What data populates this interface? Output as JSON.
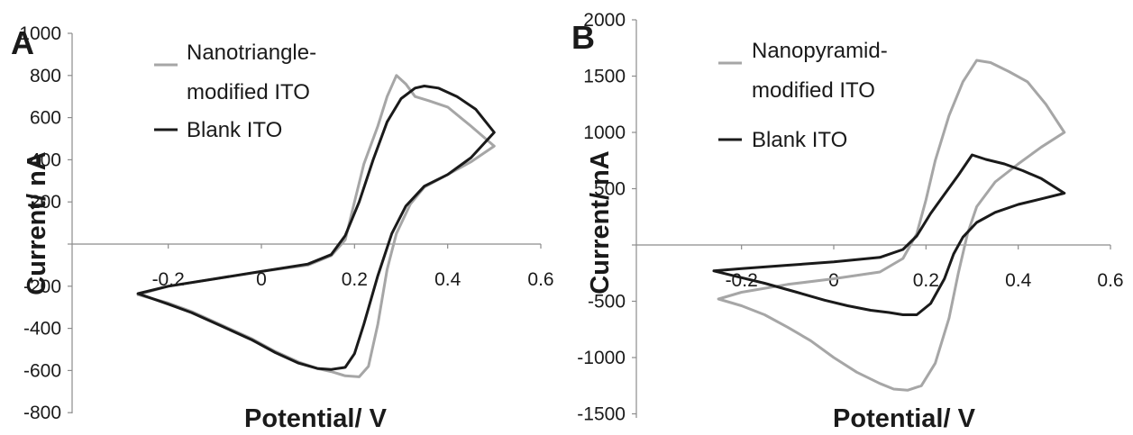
{
  "chart_data": [
    {
      "panel": "A",
      "type": "line",
      "xlabel": "Potential/ V",
      "ylabel": "Current/ nA",
      "xlim": [
        -0.3,
        0.6
      ],
      "ylim": [
        -800,
        1000
      ],
      "x_ticks": [
        -0.2,
        0,
        0.2,
        0.4,
        0.6
      ],
      "x_tick_labels": [
        "-0.2",
        "0",
        "0.2",
        "0.4",
        "0.6"
      ],
      "y_ticks": [
        -800,
        -600,
        -400,
        -200,
        0,
        200,
        400,
        600,
        800,
        1000
      ],
      "y_tick_labels": [
        "-800",
        "-600",
        "-400",
        "-200",
        "",
        "200",
        "400",
        "600",
        "800",
        "1000"
      ],
      "grid": false,
      "legend_position": "top-left",
      "series": [
        {
          "name": "Nanotriangle-\nmodified ITO",
          "color": "#a6a6a6",
          "points": [
            [
              -0.265,
              -240
            ],
            [
              -0.2,
              -200
            ],
            [
              -0.1,
              -165
            ],
            [
              0,
              -130
            ],
            [
              0.1,
              -100
            ],
            [
              0.15,
              -55
            ],
            [
              0.18,
              20
            ],
            [
              0.2,
              200
            ],
            [
              0.22,
              380
            ],
            [
              0.25,
              560
            ],
            [
              0.27,
              700
            ],
            [
              0.29,
              800
            ],
            [
              0.31,
              760
            ],
            [
              0.33,
              700
            ],
            [
              0.36,
              680
            ],
            [
              0.4,
              650
            ],
            [
              0.45,
              560
            ],
            [
              0.5,
              465
            ],
            [
              0.45,
              390
            ],
            [
              0.4,
              330
            ],
            [
              0.35,
              270
            ],
            [
              0.32,
              190
            ],
            [
              0.29,
              50
            ],
            [
              0.27,
              -120
            ],
            [
              0.25,
              -380
            ],
            [
              0.23,
              -580
            ],
            [
              0.21,
              -630
            ],
            [
              0.18,
              -625
            ],
            [
              0.15,
              -605
            ],
            [
              0.12,
              -590
            ],
            [
              0.08,
              -560
            ],
            [
              0.03,
              -510
            ],
            [
              -0.02,
              -450
            ],
            [
              -0.08,
              -390
            ],
            [
              -0.15,
              -320
            ],
            [
              -0.2,
              -280
            ],
            [
              -0.265,
              -240
            ]
          ]
        },
        {
          "name": "Blank ITO",
          "color": "#1a1a1a",
          "points": [
            [
              -0.265,
              -235
            ],
            [
              -0.2,
              -200
            ],
            [
              -0.1,
              -165
            ],
            [
              0,
              -130
            ],
            [
              0.1,
              -95
            ],
            [
              0.15,
              -50
            ],
            [
              0.18,
              40
            ],
            [
              0.21,
              200
            ],
            [
              0.24,
              400
            ],
            [
              0.27,
              580
            ],
            [
              0.3,
              690
            ],
            [
              0.33,
              740
            ],
            [
              0.35,
              750
            ],
            [
              0.38,
              740
            ],
            [
              0.42,
              700
            ],
            [
              0.46,
              640
            ],
            [
              0.5,
              530
            ],
            [
              0.45,
              410
            ],
            [
              0.4,
              330
            ],
            [
              0.35,
              275
            ],
            [
              0.31,
              180
            ],
            [
              0.28,
              50
            ],
            [
              0.25,
              -150
            ],
            [
              0.22,
              -380
            ],
            [
              0.2,
              -520
            ],
            [
              0.18,
              -585
            ],
            [
              0.15,
              -595
            ],
            [
              0.12,
              -590
            ],
            [
              0.08,
              -565
            ],
            [
              0.03,
              -515
            ],
            [
              -0.02,
              -455
            ],
            [
              -0.08,
              -395
            ],
            [
              -0.15,
              -325
            ],
            [
              -0.2,
              -285
            ],
            [
              -0.265,
              -235
            ]
          ]
        }
      ]
    },
    {
      "panel": "B",
      "type": "line",
      "xlabel": "Potential/ V",
      "ylabel": "Current/ nA",
      "xlim": [
        -0.3,
        0.6
      ],
      "ylim": [
        -1500,
        2000
      ],
      "x_ticks": [
        -0.2,
        0,
        0.2,
        0.4,
        0.6
      ],
      "x_tick_labels": [
        "-0.2",
        "0",
        "0.2",
        "0.4",
        "0.6"
      ],
      "y_ticks": [
        -1500,
        -1000,
        -500,
        0,
        500,
        1000,
        1500,
        2000
      ],
      "y_tick_labels": [
        "-1500",
        "-1000",
        "-500",
        "",
        "500",
        "1000",
        "1500",
        "2000"
      ],
      "grid": false,
      "legend_position": "top-left",
      "series": [
        {
          "name": "Nanopyramid-\nmodified ITO",
          "color": "#a6a6a6",
          "points": [
            [
              -0.25,
              -480
            ],
            [
              -0.2,
              -420
            ],
            [
              -0.1,
              -350
            ],
            [
              0,
              -300
            ],
            [
              0.1,
              -240
            ],
            [
              0.15,
              -120
            ],
            [
              0.18,
              100
            ],
            [
              0.2,
              400
            ],
            [
              0.22,
              750
            ],
            [
              0.25,
              1150
            ],
            [
              0.28,
              1450
            ],
            [
              0.31,
              1640
            ],
            [
              0.34,
              1620
            ],
            [
              0.38,
              1540
            ],
            [
              0.42,
              1450
            ],
            [
              0.46,
              1250
            ],
            [
              0.5,
              1000
            ],
            [
              0.45,
              870
            ],
            [
              0.4,
              720
            ],
            [
              0.35,
              560
            ],
            [
              0.31,
              340
            ],
            [
              0.29,
              100
            ],
            [
              0.27,
              -250
            ],
            [
              0.25,
              -650
            ],
            [
              0.22,
              -1050
            ],
            [
              0.19,
              -1250
            ],
            [
              0.16,
              -1290
            ],
            [
              0.13,
              -1280
            ],
            [
              0.1,
              -1230
            ],
            [
              0.05,
              -1130
            ],
            [
              0,
              -1000
            ],
            [
              -0.05,
              -850
            ],
            [
              -0.1,
              -730
            ],
            [
              -0.15,
              -620
            ],
            [
              -0.2,
              -540
            ],
            [
              -0.25,
              -480
            ]
          ]
        },
        {
          "name": "Blank ITO",
          "color": "#1a1a1a",
          "points": [
            [
              -0.26,
              -230
            ],
            [
              -0.2,
              -210
            ],
            [
              -0.1,
              -180
            ],
            [
              0,
              -150
            ],
            [
              0.1,
              -110
            ],
            [
              0.15,
              -40
            ],
            [
              0.18,
              80
            ],
            [
              0.21,
              280
            ],
            [
              0.24,
              450
            ],
            [
              0.27,
              620
            ],
            [
              0.3,
              800
            ],
            [
              0.33,
              760
            ],
            [
              0.37,
              720
            ],
            [
              0.41,
              660
            ],
            [
              0.45,
              590
            ],
            [
              0.5,
              460
            ],
            [
              0.45,
              410
            ],
            [
              0.4,
              360
            ],
            [
              0.35,
              290
            ],
            [
              0.31,
              200
            ],
            [
              0.28,
              70
            ],
            [
              0.26,
              -80
            ],
            [
              0.24,
              -300
            ],
            [
              0.21,
              -520
            ],
            [
              0.18,
              -620
            ],
            [
              0.15,
              -620
            ],
            [
              0.12,
              -600
            ],
            [
              0.08,
              -580
            ],
            [
              0.03,
              -540
            ],
            [
              -0.02,
              -490
            ],
            [
              -0.08,
              -420
            ],
            [
              -0.15,
              -340
            ],
            [
              -0.2,
              -290
            ],
            [
              -0.26,
              -230
            ]
          ]
        }
      ]
    }
  ]
}
